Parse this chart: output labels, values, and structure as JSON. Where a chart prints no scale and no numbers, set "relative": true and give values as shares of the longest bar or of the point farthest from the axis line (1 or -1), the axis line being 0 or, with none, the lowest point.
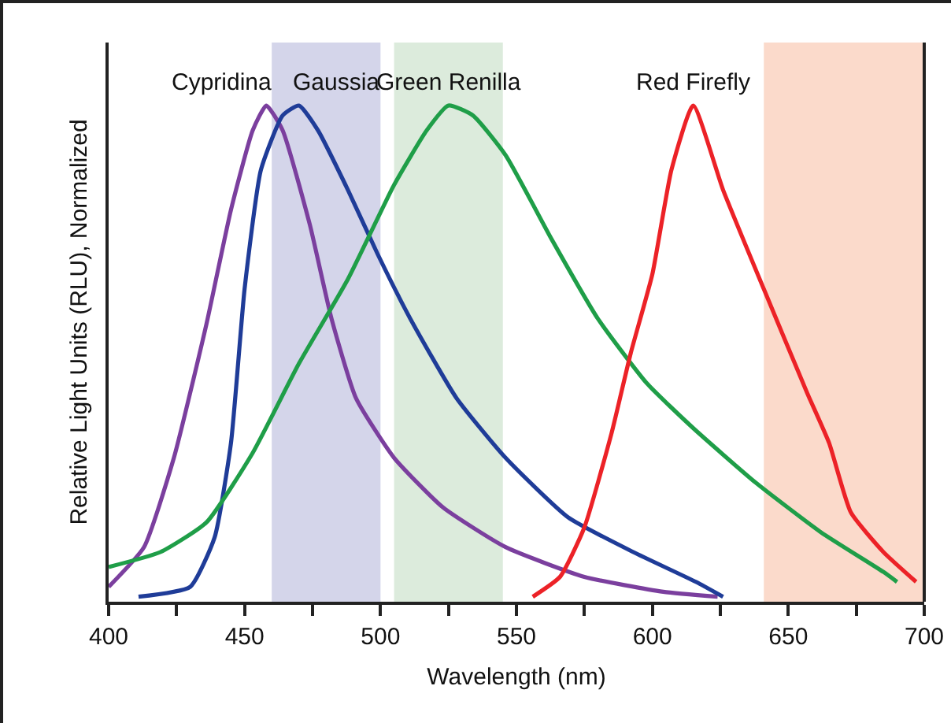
{
  "chart_data": {
    "type": "line",
    "relative": true,
    "xlabel": "Wavelength (nm)",
    "ylabel": "Relative Light Units (RLU), Normalized",
    "xlim": [
      400,
      700
    ],
    "xticks": [
      400,
      {
        "value": 425,
        "label": null
      },
      450,
      {
        "value": 475,
        "label": null
      },
      500,
      {
        "value": 525,
        "label": null
      },
      550,
      {
        "value": 575,
        "label": null
      },
      600,
      {
        "value": 625,
        "label": null
      },
      650,
      {
        "value": 675,
        "label": null
      },
      700
    ],
    "grid": false,
    "legend": false,
    "marker": "none",
    "line_style": "solid",
    "bands": [
      {
        "axis": "x",
        "from": 460,
        "to": 500,
        "label": null,
        "color": "#d4d5ea"
      },
      {
        "axis": "x",
        "from": 505,
        "to": 545,
        "label": null,
        "color": "#dcebdc"
      },
      {
        "axis": "x",
        "from": 641,
        "to": 700,
        "label": null,
        "color": "#fbdacb"
      }
    ],
    "series": [
      {
        "name": "Cypridina",
        "color": "#7b3f9e",
        "x": [
          400,
          413,
          424,
          436,
          445,
          453,
          458,
          464,
          474,
          482,
          491,
          505,
          523,
          546,
          575,
          604,
          624
        ],
        "values": [
          0.03,
          0.11,
          0.29,
          0.56,
          0.79,
          0.95,
          1.0,
          0.95,
          0.76,
          0.57,
          0.41,
          0.29,
          0.19,
          0.11,
          0.05,
          0.02,
          0.01
        ]
      },
      {
        "name": "Gaussia",
        "color": "#1f3c98",
        "x": [
          411,
          430,
          439,
          445,
          450,
          456,
          464,
          470,
          477,
          488,
          499,
          511,
          528,
          546,
          569,
          593,
          616,
          626
        ],
        "values": [
          0.01,
          0.03,
          0.13,
          0.32,
          0.63,
          0.87,
          0.98,
          1.0,
          0.95,
          0.83,
          0.7,
          0.57,
          0.41,
          0.29,
          0.17,
          0.1,
          0.04,
          0.01
        ]
      },
      {
        "name": "Green Renilla",
        "color": "#1f9e48",
        "x": [
          400,
          419,
          436,
          453,
          470,
          488,
          505,
          517,
          525,
          534,
          546,
          563,
          580,
          598,
          615,
          638,
          662,
          685,
          690
        ],
        "values": [
          0.07,
          0.1,
          0.16,
          0.3,
          0.48,
          0.65,
          0.84,
          0.95,
          1.0,
          0.98,
          0.9,
          0.73,
          0.57,
          0.44,
          0.35,
          0.24,
          0.14,
          0.06,
          0.04
        ]
      },
      {
        "name": "Red Firefly",
        "color": "#ec2227",
        "x": [
          556,
          566,
          575,
          585,
          592,
          600,
          607,
          615,
          626,
          641,
          657,
          665,
          673,
          685,
          697
        ],
        "values": [
          0.01,
          0.05,
          0.15,
          0.34,
          0.5,
          0.66,
          0.87,
          1.0,
          0.83,
          0.63,
          0.42,
          0.32,
          0.18,
          0.1,
          0.04
        ]
      }
    ]
  }
}
